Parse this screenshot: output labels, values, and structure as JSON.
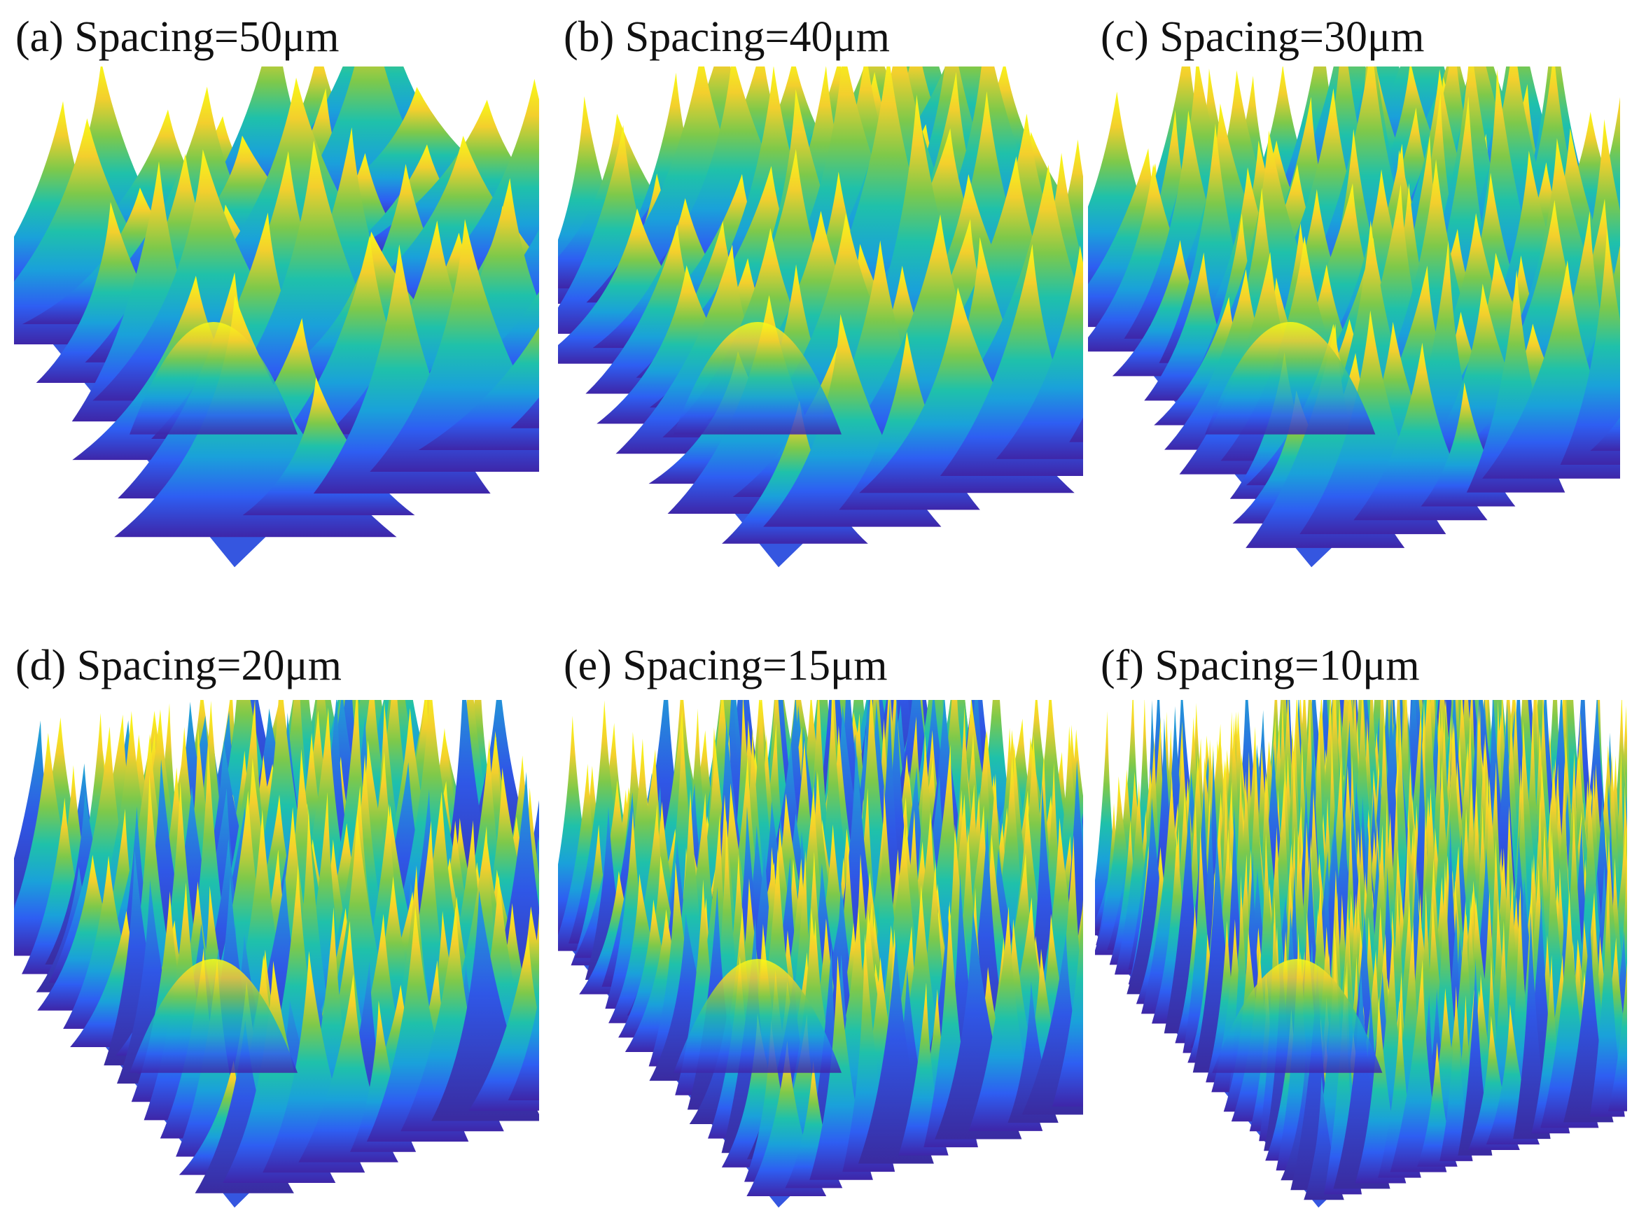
{
  "figure": {
    "panels": [
      {
        "id": "a",
        "title": "(a) Spacing=50μm",
        "spacing_um": 50
      },
      {
        "id": "b",
        "title": "(b) Spacing=40μm",
        "spacing_um": 40
      },
      {
        "id": "c",
        "title": "(c) Spacing=30μm",
        "spacing_um": 30
      },
      {
        "id": "d",
        "title": "(d) Spacing=20μm",
        "spacing_um": 20
      },
      {
        "id": "e",
        "title": "(e) Spacing=15μm",
        "spacing_um": 15
      },
      {
        "id": "f",
        "title": "(f) Spacing=10μm",
        "spacing_um": 10
      }
    ],
    "colormap": [
      "#3e26a8",
      "#2e5ef2",
      "#1aa1da",
      "#1fc1aa",
      "#7ec94a",
      "#f3cf2d",
      "#f9fb15"
    ]
  }
}
